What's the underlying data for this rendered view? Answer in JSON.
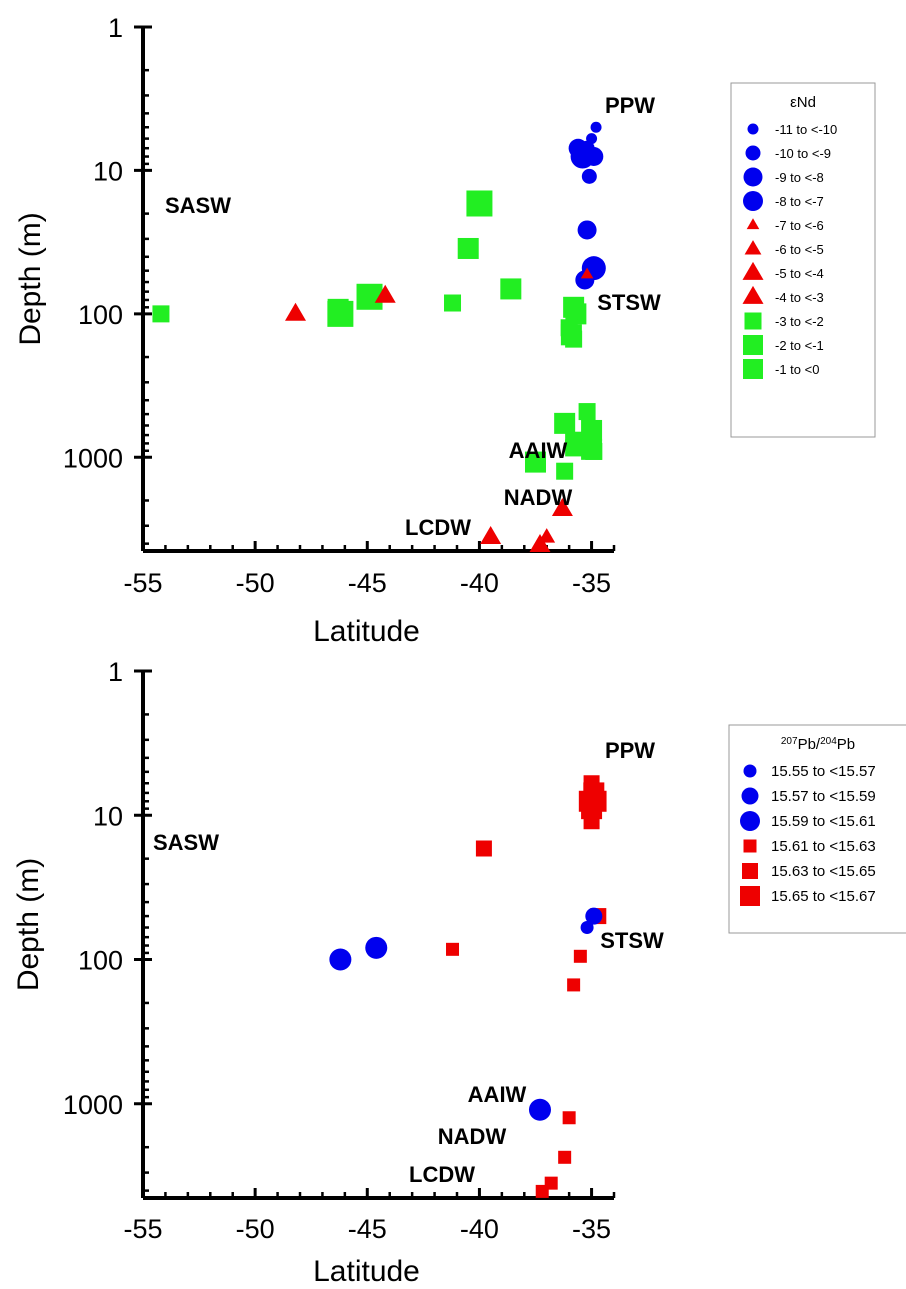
{
  "chart_data": [
    {
      "type": "scatter",
      "xlabel": "Latitude",
      "ylabel": "Depth (m)",
      "xlim": [
        -55,
        -34
      ],
      "ylim": [
        1,
        4500
      ],
      "yscale": "log",
      "xticks": [
        -55,
        -50,
        -45,
        -40,
        -35
      ],
      "yticks": [
        1,
        10,
        100,
        1000
      ],
      "annotations": [
        "PPW",
        "SASW",
        "STSW",
        "AAIW",
        "NADW",
        "LCDW"
      ],
      "legend": {
        "title": "εNd",
        "position": "right",
        "entries": [
          {
            "label": "-11 to <-10",
            "shape": "circle",
            "color": "#0000ee",
            "size": 1
          },
          {
            "label": "-10 to <-9",
            "shape": "circle",
            "color": "#0000ee",
            "size": 2
          },
          {
            "label": "-9 to <-8",
            "shape": "circle",
            "color": "#0000ee",
            "size": 3
          },
          {
            "label": "-8 to <-7",
            "shape": "circle",
            "color": "#0000ee",
            "size": 4
          },
          {
            "label": "-7 to <-6",
            "shape": "triangle",
            "color": "#ee0000",
            "size": 1
          },
          {
            "label": "-6 to <-5",
            "shape": "triangle",
            "color": "#ee0000",
            "size": 2
          },
          {
            "label": "-5 to <-4",
            "shape": "triangle",
            "color": "#ee0000",
            "size": 3
          },
          {
            "label": "-4 to <-3",
            "shape": "triangle",
            "color": "#ee0000",
            "size": 4
          },
          {
            "label": "-3 to <-2",
            "shape": "square",
            "color": "#22ee22",
            "size": 1
          },
          {
            "label": "-2 to <-1",
            "shape": "square",
            "color": "#22ee22",
            "size": 2
          },
          {
            "label": "-1 to <0",
            "shape": "square",
            "color": "#22ee22",
            "size": 3
          }
        ]
      },
      "points": [
        {
          "x": -34.8,
          "y": 5,
          "class": 0
        },
        {
          "x": -35.2,
          "y": 7,
          "class": 1
        },
        {
          "x": -35.0,
          "y": 6,
          "class": 0
        },
        {
          "x": -35.6,
          "y": 7,
          "class": 2
        },
        {
          "x": -34.9,
          "y": 8,
          "class": 2
        },
        {
          "x": -35.4,
          "y": 8,
          "class": 3
        },
        {
          "x": -35.1,
          "y": 11,
          "class": 1
        },
        {
          "x": -35.2,
          "y": 26,
          "class": 2
        },
        {
          "x": -34.9,
          "y": 48,
          "class": 3
        },
        {
          "x": -35.3,
          "y": 58,
          "class": 2
        },
        {
          "x": -35.2,
          "y": 53,
          "class": 4
        },
        {
          "x": -54.2,
          "y": 100,
          "class": 8
        },
        {
          "x": -46.2,
          "y": 100,
          "class": 10
        },
        {
          "x": -46.3,
          "y": 93,
          "class": 9
        },
        {
          "x": -44.9,
          "y": 76,
          "class": 10
        },
        {
          "x": -41.2,
          "y": 84,
          "class": 8
        },
        {
          "x": -40.5,
          "y": 35,
          "class": 9
        },
        {
          "x": -40.0,
          "y": 17,
          "class": 10
        },
        {
          "x": -38.6,
          "y": 67,
          "class": 9
        },
        {
          "x": -35.8,
          "y": 90,
          "class": 9
        },
        {
          "x": -35.7,
          "y": 100,
          "class": 9
        },
        {
          "x": -36.0,
          "y": 125,
          "class": 8
        },
        {
          "x": -35.9,
          "y": 140,
          "class": 9
        },
        {
          "x": -35.8,
          "y": 150,
          "class": 8
        },
        {
          "x": -35.2,
          "y": 480,
          "class": 8
        },
        {
          "x": -36.2,
          "y": 580,
          "class": 9
        },
        {
          "x": -35.0,
          "y": 650,
          "class": 9
        },
        {
          "x": -35.8,
          "y": 760,
          "class": 8
        },
        {
          "x": -35.0,
          "y": 880,
          "class": 9
        },
        {
          "x": -35.8,
          "y": 860,
          "class": 8
        },
        {
          "x": -34.9,
          "y": 910,
          "class": 8
        },
        {
          "x": -37.5,
          "y": 1080,
          "class": 9
        },
        {
          "x": -36.2,
          "y": 1250,
          "class": 8
        },
        {
          "x": -48.2,
          "y": 100,
          "class": 6
        },
        {
          "x": -44.2,
          "y": 75,
          "class": 6
        },
        {
          "x": -36.3,
          "y": 2300,
          "class": 6
        },
        {
          "x": -39.5,
          "y": 3600,
          "class": 6
        },
        {
          "x": -37.0,
          "y": 3600,
          "class": 5
        },
        {
          "x": -37.3,
          "y": 4100,
          "class": 6
        }
      ]
    },
    {
      "type": "scatter",
      "xlabel": "Latitude",
      "ylabel": "Depth (m)",
      "xlim": [
        -55,
        -34
      ],
      "ylim": [
        1,
        4500
      ],
      "yscale": "log",
      "xticks": [
        -55,
        -50,
        -45,
        -40,
        -35
      ],
      "yticks": [
        1,
        10,
        100,
        1000
      ],
      "annotations": [
        "PPW",
        "SASW",
        "STSW",
        "AAIW",
        "NADW",
        "LCDW"
      ],
      "legend": {
        "title_parts": [
          "207",
          "Pb/",
          "204",
          "Pb"
        ],
        "position": "right",
        "entries": [
          {
            "label": "15.55 to <15.57",
            "shape": "circle",
            "color": "#0000ee",
            "size": 1
          },
          {
            "label": "15.57 to <15.59",
            "shape": "circle",
            "color": "#0000ee",
            "size": 2
          },
          {
            "label": "15.59 to <15.61",
            "shape": "circle",
            "color": "#0000ee",
            "size": 3
          },
          {
            "label": "15.61 to <15.63",
            "shape": "square",
            "color": "#ee0000",
            "size": 1
          },
          {
            "label": "15.63 to <15.65",
            "shape": "square",
            "color": "#ee0000",
            "size": 2
          },
          {
            "label": "15.65 to <15.67",
            "shape": "square",
            "color": "#ee0000",
            "size": 3
          }
        ]
      },
      "points": [
        {
          "x": -35.0,
          "y": 6,
          "class": 4
        },
        {
          "x": -34.9,
          "y": 7,
          "class": 5
        },
        {
          "x": -35.1,
          "y": 8,
          "class": 5
        },
        {
          "x": -34.8,
          "y": 8,
          "class": 5
        },
        {
          "x": -35.0,
          "y": 9,
          "class": 5
        },
        {
          "x": -35.0,
          "y": 11,
          "class": 4
        },
        {
          "x": -39.8,
          "y": 17,
          "class": 4
        },
        {
          "x": -34.7,
          "y": 50,
          "class": 4
        },
        {
          "x": -34.9,
          "y": 50,
          "class": 1
        },
        {
          "x": -35.2,
          "y": 60,
          "class": 0
        },
        {
          "x": -41.2,
          "y": 85,
          "class": 3
        },
        {
          "x": -35.5,
          "y": 95,
          "class": 3
        },
        {
          "x": -35.8,
          "y": 150,
          "class": 3
        },
        {
          "x": -46.2,
          "y": 100,
          "class": 2
        },
        {
          "x": -44.6,
          "y": 83,
          "class": 2
        },
        {
          "x": -37.3,
          "y": 1100,
          "class": 2
        },
        {
          "x": -36.0,
          "y": 1250,
          "class": 3
        },
        {
          "x": -36.2,
          "y": 2350,
          "class": 3
        },
        {
          "x": -36.8,
          "y": 3550,
          "class": 3
        },
        {
          "x": -37.2,
          "y": 4050,
          "class": 3
        }
      ]
    }
  ]
}
